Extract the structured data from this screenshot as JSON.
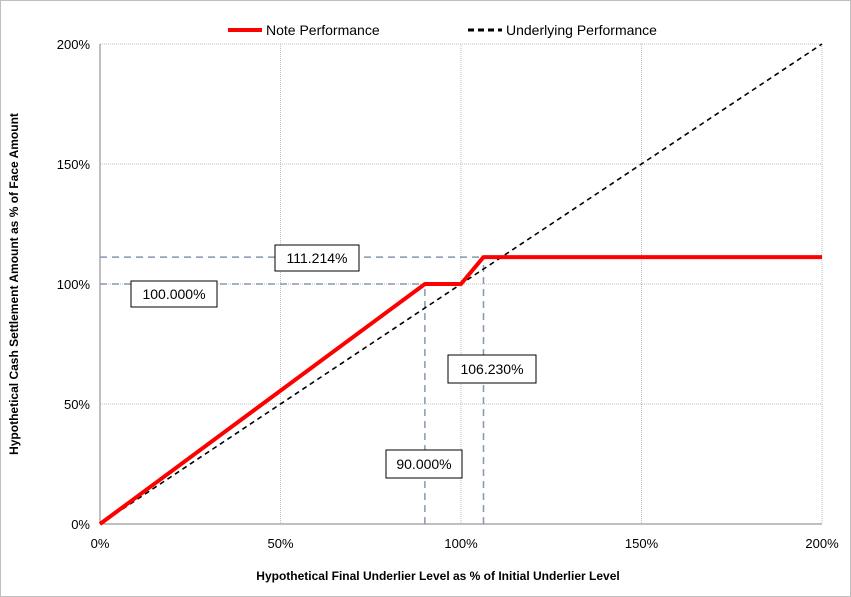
{
  "chart_data": {
    "type": "line",
    "title": "",
    "xlabel": "Hypothetical Final Underlier Level as % of Initial Underlier Level",
    "ylabel": "Hypothetical Cash Settlement Amount as % of Face Amount",
    "xlim": [
      0,
      200
    ],
    "ylim": [
      0,
      200
    ],
    "x_ticks": [
      0,
      50,
      100,
      150,
      200
    ],
    "y_ticks": [
      0,
      50,
      100,
      150,
      200
    ],
    "x_tick_labels": [
      "0%",
      "50%",
      "100%",
      "150%",
      "200%"
    ],
    "y_tick_labels": [
      "0%",
      "50%",
      "100%",
      "150%",
      "200%"
    ],
    "grid": true,
    "legend_position": "top-center",
    "series": [
      {
        "name": "Note Performance",
        "color": "#ff0000",
        "style": "solid",
        "points": [
          [
            0,
            0
          ],
          [
            90,
            100
          ],
          [
            100,
            100
          ],
          [
            106.23,
            111.214
          ],
          [
            200,
            111.214
          ]
        ]
      },
      {
        "name": "Underlying Performance",
        "color": "#000000",
        "style": "dashed",
        "points": [
          [
            0,
            0
          ],
          [
            200,
            200
          ]
        ]
      }
    ],
    "reference_lines": [
      {
        "axis": "x",
        "value": 90,
        "from": 0,
        "to": 100
      },
      {
        "axis": "x",
        "value": 106.23,
        "from": 0,
        "to": 111.214
      },
      {
        "axis": "y",
        "value": 100,
        "from": 0,
        "to": 90
      },
      {
        "axis": "y",
        "value": 111.214,
        "from": 0,
        "to": 106.23
      }
    ],
    "annotations": [
      {
        "text": "111.214%"
      },
      {
        "text": "100.000%"
      },
      {
        "text": "106.230%"
      },
      {
        "text": "90.000%"
      }
    ]
  }
}
